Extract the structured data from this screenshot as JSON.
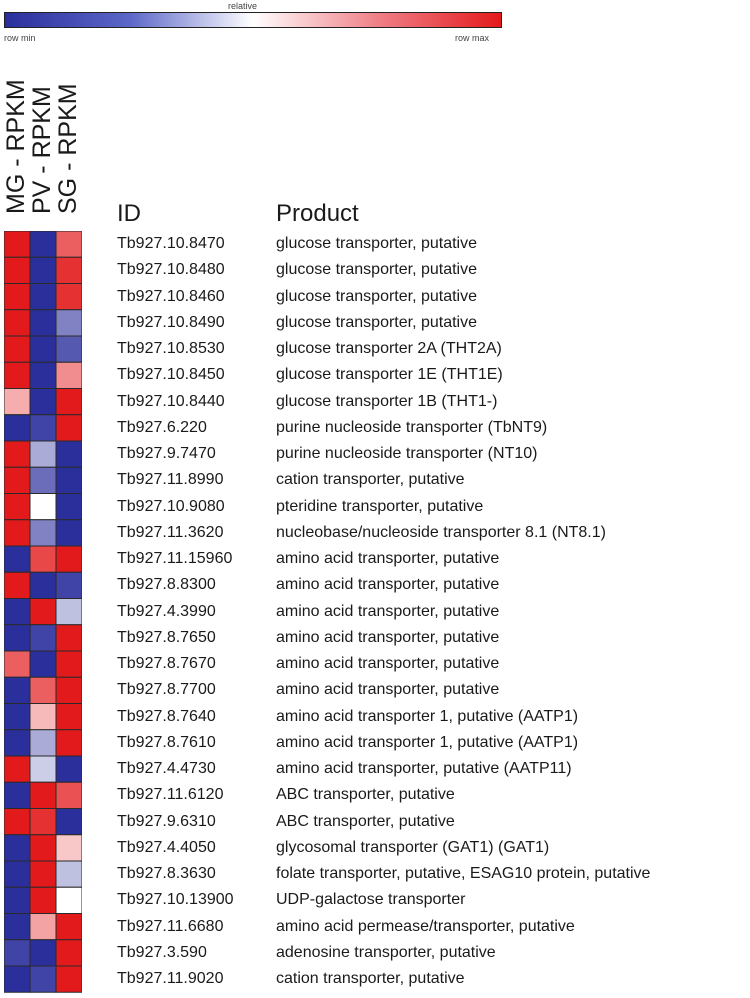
{
  "colorbar": {
    "title": "relative",
    "min_label": "row min",
    "max_label": "row max",
    "colors": {
      "min": "#2b2f9c",
      "mid": "#ffffff",
      "max": "#e31a1c"
    }
  },
  "headers": {
    "id": "ID",
    "product": "Product"
  },
  "chart_data": {
    "type": "heatmap",
    "columns": [
      "MG - RPKM",
      "PV - RPKM",
      "SG - RPKM"
    ],
    "scale": "row-relative: 0 = row min (blue), 0.5 = mid (white), 1 = row max (red)",
    "rows": [
      {
        "id": "Tb927.10.8470",
        "product": "glucose transporter, putative",
        "values": [
          1.0,
          0.0,
          0.85
        ]
      },
      {
        "id": "Tb927.10.8480",
        "product": "glucose transporter, putative",
        "values": [
          1.0,
          0.0,
          0.95
        ]
      },
      {
        "id": "Tb927.10.8460",
        "product": "glucose transporter, putative",
        "values": [
          1.0,
          0.0,
          0.95
        ]
      },
      {
        "id": "Tb927.10.8490",
        "product": "glucose transporter, putative",
        "values": [
          1.0,
          0.0,
          0.2
        ]
      },
      {
        "id": "Tb927.10.8530",
        "product": "glucose transporter 2A (THT2A)",
        "values": [
          1.0,
          0.0,
          0.1
        ]
      },
      {
        "id": "Tb927.10.8450",
        "product": "glucose transporter 1E (THT1E)",
        "values": [
          1.0,
          0.0,
          0.75
        ]
      },
      {
        "id": "Tb927.10.8440",
        "product": "glucose transporter 1B (THT1-)",
        "values": [
          0.68,
          0.0,
          1.0
        ]
      },
      {
        "id": "Tb927.6.220",
        "product": "purine nucleoside transporter (TbNT9)",
        "values": [
          0.0,
          0.05,
          1.0
        ]
      },
      {
        "id": "Tb927.9.7470",
        "product": "purine nucleoside transporter (NT10)",
        "values": [
          1.0,
          0.3,
          0.0
        ]
      },
      {
        "id": "Tb927.11.8990",
        "product": "cation transporter, putative",
        "values": [
          1.0,
          0.15,
          0.0
        ]
      },
      {
        "id": "Tb927.10.9080",
        "product": "pteridine transporter, putative",
        "values": [
          1.0,
          0.5,
          0.0
        ]
      },
      {
        "id": "Tb927.11.3620",
        "product": "nucleobase/nucleoside transporter 8.1 (NT8.1)",
        "values": [
          1.0,
          0.2,
          0.0
        ]
      },
      {
        "id": "Tb927.11.15960",
        "product": "amino acid transporter, putative",
        "values": [
          0.0,
          0.9,
          1.0
        ]
      },
      {
        "id": "Tb927.8.8300",
        "product": "amino acid transporter, putative",
        "values": [
          1.0,
          0.0,
          0.05
        ]
      },
      {
        "id": "Tb927.4.3990",
        "product": "amino acid transporter, putative",
        "values": [
          0.0,
          1.0,
          0.35
        ]
      },
      {
        "id": "Tb927.8.7650",
        "product": "amino acid transporter, putative",
        "values": [
          0.0,
          0.05,
          1.0
        ]
      },
      {
        "id": "Tb927.8.7670",
        "product": "amino acid transporter, putative",
        "values": [
          0.85,
          0.0,
          1.0
        ]
      },
      {
        "id": "Tb927.8.7700",
        "product": "amino acid transporter, putative",
        "values": [
          0.0,
          0.85,
          1.0
        ]
      },
      {
        "id": "Tb927.8.7640",
        "product": "amino acid transporter 1, putative (AATP1)",
        "values": [
          0.0,
          0.65,
          1.0
        ]
      },
      {
        "id": "Tb927.8.7610",
        "product": "amino acid transporter 1, putative (AATP1)",
        "values": [
          0.0,
          0.3,
          1.0
        ]
      },
      {
        "id": "Tb927.4.4730",
        "product": "amino acid transporter, putative (AATP11)",
        "values": [
          1.0,
          0.38,
          0.0
        ]
      },
      {
        "id": "Tb927.11.6120",
        "product": "ABC transporter, putative",
        "values": [
          0.0,
          1.0,
          0.88
        ]
      },
      {
        "id": "Tb927.9.6310",
        "product": "ABC transporter, putative",
        "values": [
          1.0,
          0.95,
          0.0
        ]
      },
      {
        "id": "Tb927.4.4050",
        "product": "glycosomal transporter (GAT1) (GAT1)",
        "values": [
          0.0,
          1.0,
          0.62
        ]
      },
      {
        "id": "Tb927.8.3630",
        "product": "folate transporter, putative, ESAG10 protein, putative",
        "values": [
          0.0,
          1.0,
          0.35
        ]
      },
      {
        "id": "Tb927.10.13900",
        "product": "UDP-galactose transporter",
        "values": [
          0.0,
          1.0,
          0.5
        ]
      },
      {
        "id": "Tb927.11.6680",
        "product": "amino acid permease/transporter, putative",
        "values": [
          0.0,
          0.7,
          1.0
        ]
      },
      {
        "id": "Tb927.3.590",
        "product": "adenosine transporter, putative",
        "values": [
          0.05,
          0.0,
          1.0
        ]
      },
      {
        "id": "Tb927.11.9020",
        "product": "cation transporter, putative",
        "values": [
          0.0,
          0.05,
          1.0
        ]
      }
    ]
  }
}
